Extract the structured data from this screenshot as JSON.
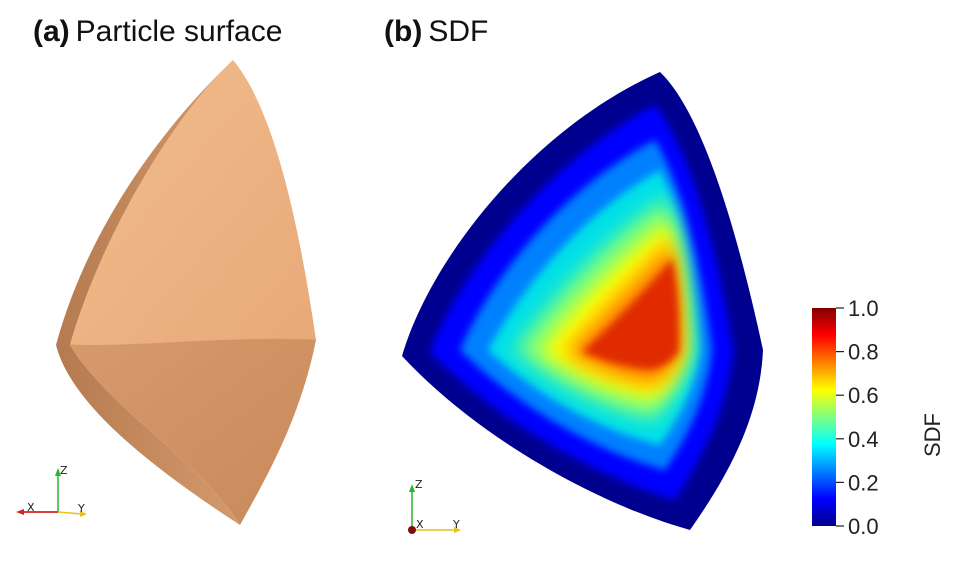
{
  "panel_a": {
    "letter": "(a)",
    "title": "Particle surface"
  },
  "panel_b": {
    "letter": "(b)",
    "title": "SDF"
  },
  "orientation_a": {
    "x": "X",
    "y": "Y",
    "z": "Z"
  },
  "orientation_b": {
    "x": "X",
    "y": "Y",
    "z": "Z"
  },
  "colorbar": {
    "title": "SDF",
    "ticks": [
      "1.0",
      "0.8",
      "0.6",
      "0.4",
      "0.2",
      "0.0"
    ],
    "colormap": "jet",
    "range": [
      0.0,
      1.0
    ]
  },
  "colors": {
    "particle": "#e5a677",
    "axis_x": "#d62020",
    "axis_y": "#e3c21e",
    "axis_z": "#2bb52b"
  }
}
